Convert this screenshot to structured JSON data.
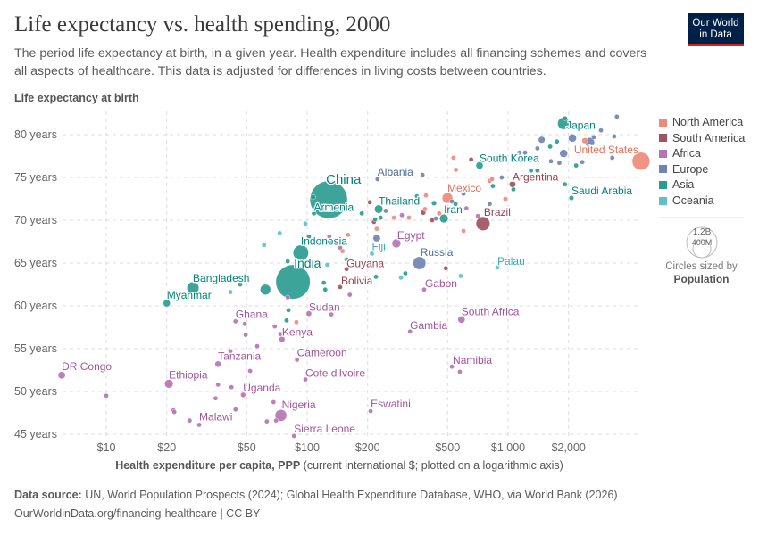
{
  "header": {
    "title": "Life expectancy vs. health spending, 2000",
    "subtitle": "The period life expectancy at birth, in a given year. Health expenditure includes all financing schemes and covers all aspects of healthcare. This data is adjusted for differences in living costs between countries.",
    "logo_line1": "Our World",
    "logo_line2": "in Data"
  },
  "footer": {
    "source_label": "Data source:",
    "source_text": " UN, World Population Prospects (2024); Global Health Expenditure Database, WHO, via World Bank (2026)",
    "url": "OurWorldinData.org/financing-healthcare | CC BY"
  },
  "legend": {
    "regions": [
      {
        "name": "North America",
        "color": "#ee8a78",
        "label_color": "#e56e5a"
      },
      {
        "name": "South America",
        "color": "#a0535f",
        "label_color": "#9a3f4f"
      },
      {
        "name": "Africa",
        "color": "#b574b5",
        "label_color": "#a2559c"
      },
      {
        "name": "Europe",
        "color": "#6f84b3",
        "label_color": "#4c6a9c"
      },
      {
        "name": "Asia",
        "color": "#2b9c90",
        "label_color": "#00847e"
      },
      {
        "name": "Oceania",
        "color": "#60bfcb",
        "label_color": "#38aaba"
      }
    ],
    "size_large": "1.2B",
    "size_small": "400M",
    "size_caption": "Circles sized by",
    "size_variable": "Population"
  },
  "chart_data": {
    "type": "scatter",
    "title": "Life expectancy vs. health spending, 2000",
    "ylabel": "Life expectancy at birth",
    "xlabel_bold": "Health expenditure per capita, PPP",
    "xlabel_rest": " (current international $; plotted on a logarithmic axis)",
    "x_scale": "log",
    "xlim": [
      5.8,
      4800
    ],
    "ylim": [
      44.5,
      82.7
    ],
    "x_ticks": [
      {
        "value": 10,
        "label": "$10"
      },
      {
        "value": 20,
        "label": "$20"
      },
      {
        "value": 50,
        "label": "$50"
      },
      {
        "value": 100,
        "label": "$100"
      },
      {
        "value": 200,
        "label": "$200"
      },
      {
        "value": 500,
        "label": "$500"
      },
      {
        "value": 1000,
        "label": "$1,000"
      },
      {
        "value": 2000,
        "label": "$2,000"
      }
    ],
    "y_ticks": [
      {
        "value": 45,
        "label": "45 years"
      },
      {
        "value": 50,
        "label": "50 years"
      },
      {
        "value": 55,
        "label": "55 years"
      },
      {
        "value": 60,
        "label": "60 years"
      },
      {
        "value": 65,
        "label": "65 years"
      },
      {
        "value": 70,
        "label": "70 years"
      },
      {
        "value": 75,
        "label": "75 years"
      },
      {
        "value": 80,
        "label": "80 years"
      }
    ],
    "grid": true,
    "legend_position": "right",
    "size_variable": "Population (millions)",
    "point_fields": [
      "entity",
      "region",
      "health_expenditure",
      "life_expectancy",
      "population_millions"
    ],
    "points": [
      [
        "China",
        "Asia",
        128,
        72.4,
        1263
      ],
      [
        "India",
        "Asia",
        85,
        62.8,
        1057
      ],
      [
        "United States",
        "North America",
        4590,
        76.9,
        282
      ],
      [
        "Indonesia",
        "Asia",
        93,
        66.2,
        214
      ],
      [
        "Brazil",
        "South America",
        750,
        69.6,
        175
      ],
      [
        "Russia",
        "Europe",
        362,
        65.0,
        147
      ],
      [
        "Bangladesh",
        "Asia",
        27,
        62.1,
        130
      ],
      [
        "Japan",
        "Asia",
        1888,
        81.3,
        127
      ],
      [
        "Nigeria",
        "Africa",
        74,
        47.2,
        122
      ],
      [
        "Mexico",
        "North America",
        499,
        72.6,
        100
      ],
      [
        "Egypt",
        "Africa",
        278,
        67.3,
        70
      ],
      [
        "Ethiopia",
        "Africa",
        20.5,
        50.9,
        67
      ],
      [
        "Iran",
        "Asia",
        479,
        70.2,
        66
      ],
      [
        "Thailand",
        "Asia",
        227,
        71.3,
        63
      ],
      [
        "DR Congo",
        "Africa",
        6.0,
        51.9,
        48
      ],
      [
        "South Korea",
        "Asia",
        721,
        76.4,
        47
      ],
      [
        "Myanmar",
        "Asia",
        20,
        60.3,
        46
      ],
      [
        "South Africa",
        "Africa",
        586,
        58.4,
        46
      ],
      [
        "Argentina",
        "South America",
        1052,
        74.2,
        37
      ],
      [
        "Tanzania",
        "Africa",
        36,
        53.2,
        34
      ],
      [
        "Kenya",
        "Africa",
        75,
        56.1,
        31
      ],
      [
        "Sudan",
        "Africa",
        102,
        59.1,
        27
      ],
      [
        "Uganda",
        "Africa",
        48,
        49.6,
        24
      ],
      [
        "Saudi Arabia",
        "Asia",
        2068,
        72.6,
        21
      ],
      [
        "Ghana",
        "Africa",
        44,
        58.2,
        19
      ],
      [
        "Cote d'Ivoire",
        "Africa",
        98,
        51.4,
        17
      ],
      [
        "Cameroon",
        "Africa",
        89,
        53.7,
        15
      ],
      [
        "Malawi",
        "Africa",
        29,
        46.1,
        11
      ],
      [
        "Bolivia",
        "South America",
        146,
        62.2,
        8
      ],
      [
        "Sierra Leone",
        "Africa",
        86,
        44.8,
        4.4
      ],
      [
        "Armenia",
        "Asia",
        108,
        70.8,
        3
      ],
      [
        "Albania",
        "Europe",
        224,
        74.8,
        3
      ],
      [
        "Namibia",
        "Africa",
        525,
        52.9,
        1.9
      ],
      [
        "Gambia",
        "Africa",
        325,
        57.0,
        1.3
      ],
      [
        "Gabon",
        "Africa",
        382,
        61.9,
        1.3
      ],
      [
        "Eswatini",
        "Africa",
        207,
        47.7,
        1.0
      ],
      [
        "Fiji",
        "Oceania",
        210,
        66.1,
        0.8
      ],
      [
        "Guyana",
        "South America",
        157,
        64.3,
        0.75
      ],
      [
        "Palau",
        "Oceania",
        885,
        64.5,
        0.02
      ],
      [
        "",
        "Europe",
        3480,
        82.1,
        5
      ],
      [
        "",
        "Europe",
        2900,
        80.5,
        5
      ],
      [
        "",
        "Europe",
        3375,
        79.8,
        5
      ],
      [
        "",
        "Europe",
        2670,
        79.7,
        5
      ],
      [
        "",
        "Europe",
        2090,
        79.6,
        59
      ],
      [
        "",
        "Europe",
        2550,
        79.1,
        82
      ],
      [
        "",
        "Europe",
        1470,
        79.4,
        40
      ],
      [
        "",
        "Europe",
        1400,
        78.4,
        10
      ],
      [
        "",
        "Europe",
        1215,
        77.9,
        5
      ],
      [
        "",
        "Europe",
        1140,
        77.9,
        5
      ],
      [
        "",
        "Europe",
        1890,
        77.8,
        57
      ],
      [
        "",
        "Europe",
        1635,
        76.9,
        5
      ],
      [
        "",
        "Europe",
        1800,
        76.7,
        5
      ],
      [
        "",
        "Europe",
        2340,
        76.8,
        5
      ],
      [
        "",
        "Europe",
        3300,
        77.3,
        5
      ],
      [
        "",
        "Europe",
        930,
        75.0,
        5
      ],
      [
        "",
        "Europe",
        375,
        75.3,
        5
      ],
      [
        "",
        "Europe",
        810,
        71.9,
        5
      ],
      [
        "",
        "Europe",
        525,
        72.2,
        5
      ],
      [
        "",
        "Europe",
        246,
        71.1,
        9
      ],
      [
        "",
        "Europe",
        437,
        70.2,
        5
      ],
      [
        "",
        "Europe",
        222,
        67.9,
        49
      ],
      [
        "",
        "Europe",
        600,
        73.1,
        5
      ],
      [
        "",
        "Asia",
        1920,
        81.9,
        6
      ],
      [
        "",
        "Asia",
        1620,
        78.6,
        5
      ],
      [
        "",
        "Asia",
        1300,
        75.8,
        5
      ],
      [
        "",
        "Asia",
        1400,
        75.8,
        5
      ],
      [
        "",
        "Asia",
        1750,
        79.2,
        5
      ],
      [
        "",
        "Asia",
        2180,
        76.4,
        5
      ],
      [
        "",
        "Asia",
        1920,
        74.2,
        5
      ],
      [
        "",
        "Asia",
        840,
        74.0,
        5
      ],
      [
        "",
        "Asia",
        1063,
        73.6,
        5
      ],
      [
        "",
        "Asia",
        547,
        71.9,
        5
      ],
      [
        "",
        "Asia",
        428,
        72.0,
        23
      ],
      [
        "",
        "Asia",
        232,
        70.3,
        5
      ],
      [
        "",
        "Asia",
        187,
        70.8,
        5
      ],
      [
        "",
        "Asia",
        352,
        72.8,
        5
      ],
      [
        "",
        "Asia",
        308,
        63.8,
        5
      ],
      [
        "",
        "Asia",
        220,
        63.4,
        5
      ],
      [
        "",
        "Asia",
        107,
        72.7,
        25
      ],
      [
        "",
        "Asia",
        218,
        70.1,
        5
      ],
      [
        "",
        "Asia",
        102,
        68.1,
        5
      ],
      [
        "",
        "Asia",
        157,
        65.4,
        5
      ],
      [
        "",
        "Asia",
        80,
        65.2,
        5
      ],
      [
        "",
        "Asia",
        121,
        62.7,
        5
      ],
      [
        "",
        "Asia",
        123,
        61.9,
        5
      ],
      [
        "",
        "Asia",
        62,
        61.9,
        100
      ],
      [
        "",
        "Asia",
        46.4,
        62.5,
        5
      ],
      [
        "",
        "Asia",
        80.7,
        59.5,
        5
      ],
      [
        "",
        "Asia",
        79,
        58.3,
        5
      ],
      [
        "",
        "North America",
        535,
        77.3,
        5
      ],
      [
        "",
        "North America",
        550,
        75.9,
        5
      ],
      [
        "",
        "North America",
        809,
        74.6,
        5
      ],
      [
        "",
        "North America",
        832,
        74.8,
        5
      ],
      [
        "",
        "North America",
        2410,
        79.3,
        31
      ],
      [
        "",
        "North America",
        969,
        72.5,
        5
      ],
      [
        "",
        "North America",
        390,
        72.9,
        5
      ],
      [
        "",
        "North America",
        321,
        70.3,
        5
      ],
      [
        "",
        "North America",
        270,
        70.3,
        5
      ],
      [
        "",
        "North America",
        454,
        70.8,
        5
      ],
      [
        "",
        "North America",
        222,
        69.0,
        5
      ],
      [
        "",
        "North America",
        600,
        68.75,
        5
      ],
      [
        "",
        "North America",
        386,
        71.3,
        5
      ],
      [
        "",
        "North America",
        160,
        68.3,
        5
      ],
      [
        "",
        "North America",
        150,
        66.4,
        5
      ],
      [
        "",
        "North America",
        88.4,
        58.1,
        5
      ],
      [
        "",
        "South America",
        655,
        77.1,
        5
      ],
      [
        "",
        "South America",
        205,
        72.1,
        5
      ],
      [
        "",
        "South America",
        378,
        70.9,
        24
      ],
      [
        "",
        "South America",
        215,
        69.8,
        8
      ],
      [
        "",
        "South America",
        419,
        70.0,
        5
      ],
      [
        "",
        "South America",
        490,
        64.4,
        5
      ],
      [
        "",
        "Africa",
        296,
        70.6,
        9
      ],
      [
        "",
        "Africa",
        707,
        70.5,
        5
      ],
      [
        "",
        "Africa",
        620,
        71.4,
        5
      ],
      [
        "",
        "Africa",
        129,
        68.1,
        5
      ],
      [
        "",
        "Africa",
        146,
        66.8,
        5
      ],
      [
        "",
        "Africa",
        163,
        61.3,
        5
      ],
      [
        "",
        "Africa",
        80,
        61.0,
        5
      ],
      [
        "",
        "Africa",
        132,
        59.0,
        5
      ],
      [
        "",
        "Africa",
        48.9,
        57.9,
        5
      ],
      [
        "",
        "Africa",
        69,
        57.6,
        5
      ],
      [
        "",
        "Africa",
        49.4,
        56.6,
        5
      ],
      [
        "",
        "Africa",
        56.4,
        55.3,
        5
      ],
      [
        "",
        "Africa",
        41.5,
        54.7,
        5
      ],
      [
        "",
        "Africa",
        52,
        52.4,
        5
      ],
      [
        "",
        "Africa",
        36,
        50.8,
        5
      ],
      [
        "",
        "Africa",
        42,
        50.5,
        5
      ],
      [
        "",
        "Africa",
        35,
        49.2,
        5
      ],
      [
        "",
        "Africa",
        10,
        49.5,
        5
      ],
      [
        "",
        "Africa",
        21.6,
        47.8,
        5
      ],
      [
        "",
        "Africa",
        21.8,
        47.6,
        5
      ],
      [
        "",
        "Africa",
        44,
        47.9,
        5
      ],
      [
        "",
        "Africa",
        26,
        46.6,
        5
      ],
      [
        "",
        "Africa",
        63,
        46.5,
        5
      ],
      [
        "",
        "Africa",
        70,
        46.6,
        5
      ],
      [
        "",
        "Africa",
        68,
        48.75,
        5
      ],
      [
        "",
        "Africa",
        73.6,
        56.7,
        5
      ],
      [
        "",
        "Africa",
        575,
        52.3,
        5
      ],
      [
        "",
        "Oceania",
        98,
        69.6,
        5
      ],
      [
        "",
        "Oceania",
        73,
        68.5,
        5
      ],
      [
        "",
        "Oceania",
        61,
        67.1,
        5
      ],
      [
        "",
        "Oceania",
        126,
        64.8,
        5
      ],
      [
        "",
        "Oceania",
        41.5,
        61.6,
        5
      ],
      [
        "",
        "Oceania",
        293,
        63.3,
        5
      ],
      [
        "",
        "Oceania",
        581,
        63.5,
        5
      ]
    ]
  }
}
